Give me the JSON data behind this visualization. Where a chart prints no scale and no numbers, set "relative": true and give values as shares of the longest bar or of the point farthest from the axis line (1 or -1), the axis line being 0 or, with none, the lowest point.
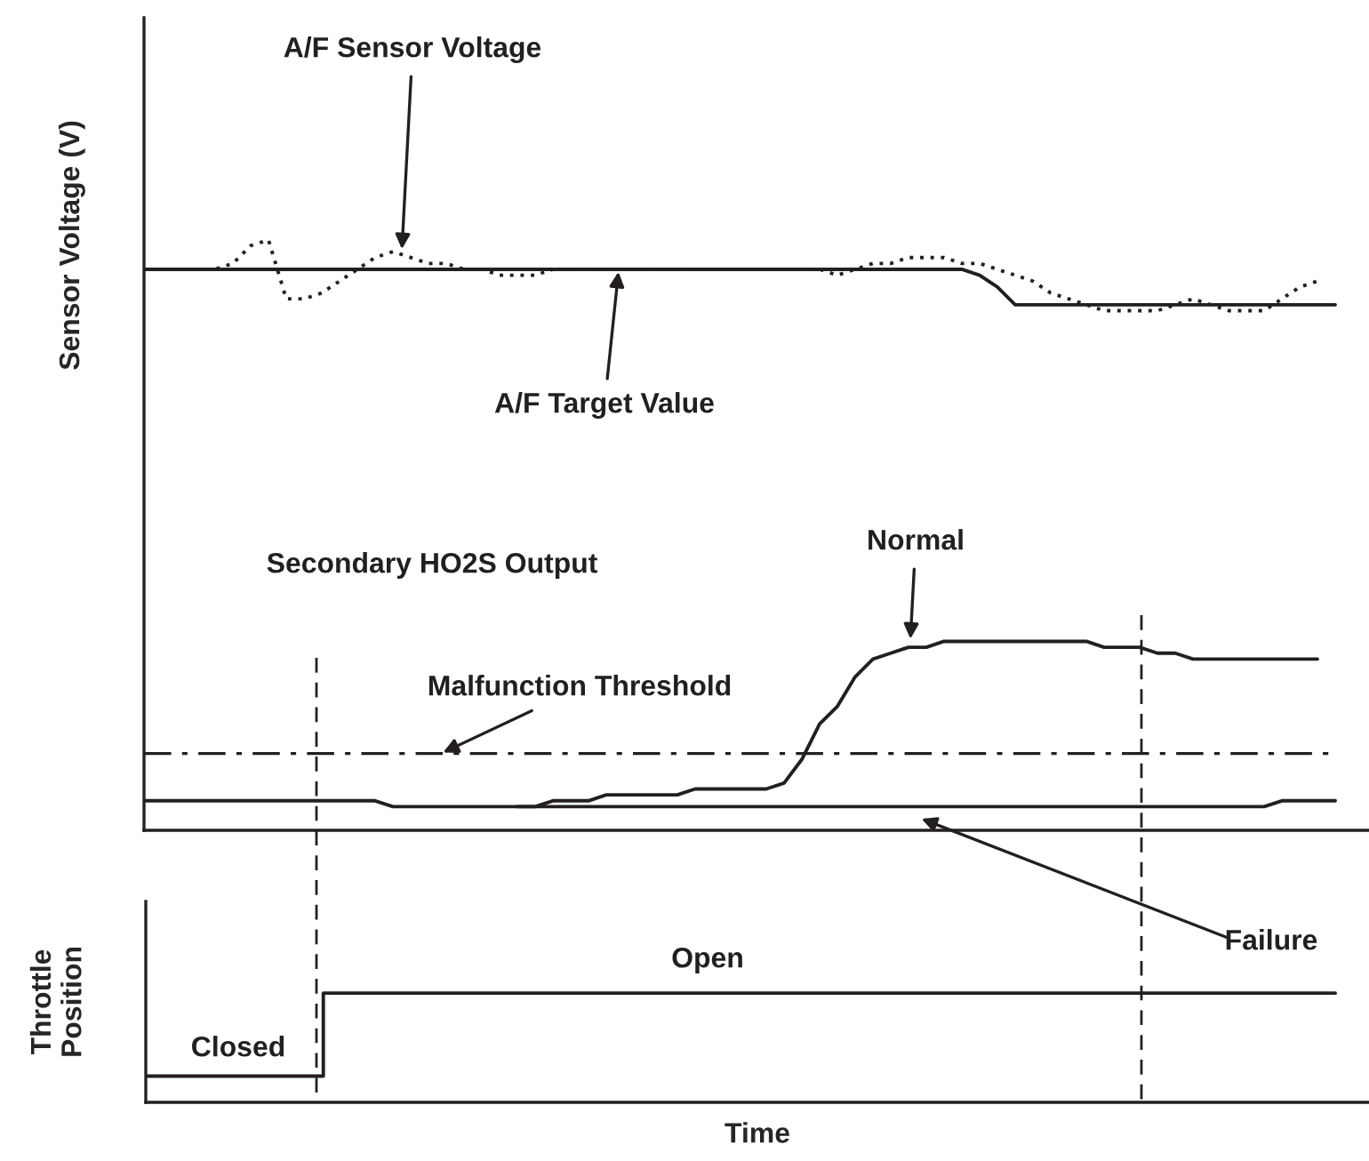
{
  "chart_data": [
    {
      "type": "line",
      "relative": true,
      "ylabel": "Sensor Voltage (V)",
      "tick_labels": false,
      "categories": [
        null,
        null,
        null,
        null,
        null,
        null,
        null,
        null,
        null,
        null,
        null,
        null,
        null,
        null,
        null,
        null,
        null,
        null,
        null,
        null,
        null,
        null,
        null,
        null,
        null,
        null,
        null,
        null,
        null,
        null,
        null,
        null,
        null,
        null,
        null,
        null,
        null,
        null,
        null,
        null,
        null,
        null,
        null,
        null,
        null,
        null,
        null,
        null,
        null,
        null,
        null,
        null,
        null,
        null,
        null,
        null,
        null,
        null,
        null,
        null,
        null,
        null,
        null,
        null,
        null,
        null,
        null,
        null,
        null
      ],
      "series": [
        {
          "color": "#231f20",
          "line_style": "solid",
          "values": [
            0.95,
            0.95,
            0.95,
            0.95,
            0.95,
            0.95,
            0.95,
            0.95,
            0.95,
            0.95,
            0.95,
            0.95,
            0.95,
            0.95,
            0.95,
            0.95,
            0.95,
            0.95,
            0.95,
            0.95,
            0.95,
            0.95,
            0.95,
            0.95,
            0.95,
            0.95,
            0.95,
            0.95,
            0.95,
            0.95,
            0.95,
            0.95,
            0.95,
            0.95,
            0.95,
            0.95,
            0.95,
            0.95,
            0.95,
            0.95,
            0.95,
            0.95,
            0.95,
            0.95,
            0.95,
            0.95,
            0.95,
            0.94,
            0.92,
            0.89,
            0.89,
            0.89,
            0.89,
            0.89,
            0.89,
            0.89,
            0.89,
            0.89,
            0.89,
            0.89,
            0.89,
            0.89,
            0.89,
            0.89,
            0.89,
            0.89,
            0.89,
            0.89,
            null
          ]
        },
        {
          "color": "#231f20",
          "line_style": "dotted",
          "values": [
            0.95,
            0.95,
            0.95,
            0.95,
            0.95,
            0.96,
            0.99,
            1.0,
            0.9,
            0.9,
            0.91,
            0.93,
            0.95,
            0.97,
            0.98,
            0.97,
            0.96,
            0.96,
            0.95,
            0.95,
            0.94,
            0.94,
            0.94,
            0.95,
            0.95,
            0.95,
            0.95,
            0.95,
            0.95,
            0.95,
            0.95,
            0.95,
            0.95,
            0.95,
            0.95,
            0.95,
            0.95,
            0.95,
            0.95,
            0.94,
            0.95,
            0.96,
            0.96,
            0.97,
            0.97,
            0.97,
            0.96,
            0.96,
            0.95,
            0.94,
            0.93,
            0.91,
            0.9,
            0.89,
            0.88,
            0.88,
            0.88,
            0.88,
            0.89,
            0.9,
            0.89,
            0.88,
            0.88,
            0.88,
            0.9,
            0.92,
            0.93,
            null,
            null
          ]
        },
        {
          "color": "#231f20",
          "line_style": "solid",
          "values": [
            0.05,
            0.05,
            0.05,
            0.05,
            0.05,
            0.05,
            0.05,
            0.05,
            0.05,
            0.05,
            0.05,
            0.05,
            0.05,
            0.05,
            0.04,
            0.04,
            0.04,
            0.04,
            0.04,
            0.04,
            0.04,
            0.04,
            0.04,
            0.04,
            0.04,
            0.04,
            0.04,
            0.04,
            0.04,
            0.04,
            0.04,
            0.04,
            0.04,
            0.04,
            0.04,
            0.04,
            0.04,
            0.04,
            0.04,
            0.04,
            0.04,
            0.04,
            0.04,
            0.04,
            0.04,
            0.04,
            0.04,
            0.04,
            0.04,
            0.04,
            0.04,
            0.04,
            0.04,
            0.04,
            0.04,
            0.04,
            0.04,
            0.04,
            0.04,
            0.04,
            0.04,
            0.04,
            0.04,
            0.04,
            0.05,
            0.05,
            0.05,
            0.05,
            null
          ]
        },
        {
          "color": "#231f20",
          "line_style": "solid",
          "values": [
            null,
            null,
            null,
            null,
            null,
            null,
            null,
            null,
            null,
            null,
            null,
            null,
            null,
            null,
            null,
            null,
            null,
            null,
            null,
            null,
            null,
            0.04,
            0.04,
            0.05,
            0.05,
            0.05,
            0.06,
            0.06,
            0.06,
            0.06,
            0.06,
            0.07,
            0.07,
            0.07,
            0.07,
            0.07,
            0.08,
            0.12,
            0.18,
            0.21,
            0.26,
            0.29,
            0.3,
            0.31,
            0.31,
            0.32,
            0.32,
            0.32,
            0.32,
            0.32,
            0.32,
            0.32,
            0.32,
            0.32,
            0.31,
            0.31,
            0.31,
            0.3,
            0.3,
            0.29,
            0.29,
            0.29,
            0.29,
            0.29,
            0.29,
            0.29,
            0.29,
            null,
            null
          ]
        }
      ],
      "ref_lines": [
        {
          "axis": "y",
          "value": 0.13,
          "color": "#231f20",
          "line_style": "dashdot"
        }
      ],
      "annotations": [
        {
          "text": "A/F Sensor Voltage",
          "y": 0.98
        },
        {
          "text": "A/F Target Value",
          "y": 0.95
        },
        "Secondary HO2S Output",
        {
          "text": "Normal",
          "y": 0.32
        },
        {
          "text": "Malfunction Threshold",
          "y": 0.13
        },
        "Failure"
      ]
    },
    {
      "type": "step",
      "relative": true,
      "ylabel": "Throttle\nPosition",
      "xlabel": "Time",
      "tick_labels": false,
      "categories": [
        null,
        null,
        null,
        null,
        null,
        null,
        null,
        null,
        null,
        null,
        null,
        null,
        null,
        null,
        null,
        null,
        null,
        null,
        null,
        null,
        null,
        null,
        null,
        null,
        null,
        null,
        null,
        null,
        null,
        null,
        null,
        null,
        null,
        null,
        null,
        null,
        null,
        null,
        null,
        null,
        null,
        null,
        null,
        null,
        null,
        null,
        null,
        null,
        null,
        null,
        null,
        null,
        null,
        null,
        null,
        null,
        null,
        null,
        null,
        null,
        null,
        null,
        null,
        null,
        null,
        null,
        null,
        null,
        null
      ],
      "series": [
        {
          "color": "#231f20",
          "line_style": "solid",
          "values": [
            0.24,
            0.24,
            0.24,
            0.24,
            0.24,
            0.24,
            0.24,
            0.24,
            0.24,
            0.24,
            1,
            1,
            1,
            1,
            1,
            1,
            1,
            1,
            1,
            1,
            1,
            1,
            1,
            1,
            1,
            1,
            1,
            1,
            1,
            1,
            1,
            1,
            1,
            1,
            1,
            1,
            1,
            1,
            1,
            1,
            1,
            1,
            1,
            1,
            1,
            1,
            1,
            1,
            1,
            1,
            1,
            1,
            1,
            1,
            1,
            1,
            1,
            1,
            1,
            1,
            1,
            1,
            1,
            1,
            1,
            1,
            1,
            1,
            null
          ]
        }
      ],
      "annotations": [
        "Open",
        "Closed"
      ]
    }
  ]
}
